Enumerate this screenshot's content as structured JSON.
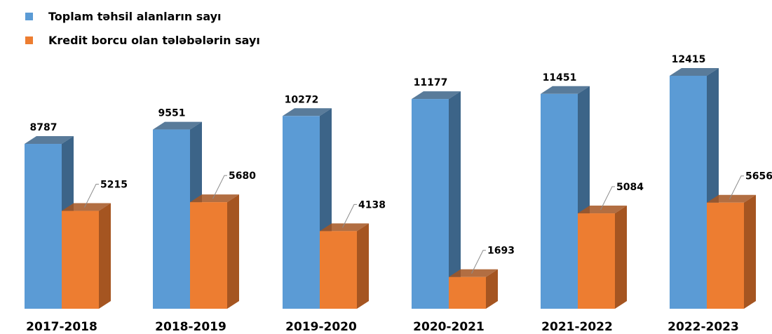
{
  "chart_data": {
    "type": "bar",
    "style": "3d-clustered-column",
    "categories": [
      "2017-2018",
      "2018-2019",
      "2019-2020",
      "2020-2021",
      "2021-2022",
      "2022-2023"
    ],
    "series": [
      {
        "name": "Toplam təhsil alanların sayı",
        "values": [
          8787,
          9551,
          10272,
          11177,
          11451,
          12415
        ],
        "color": "#5b9bd5",
        "side_color": "#3c6488"
      },
      {
        "name": "Kredit borcu olan tələbələrin sayı",
        "values": [
          5215,
          5680,
          4138,
          1693,
          5084,
          5656
        ],
        "color": "#ed7d31",
        "side_color": "#a55521"
      }
    ],
    "data_labels": true,
    "legend_position": "top-left",
    "grid": false,
    "ylim": [
      0,
      12415
    ]
  }
}
